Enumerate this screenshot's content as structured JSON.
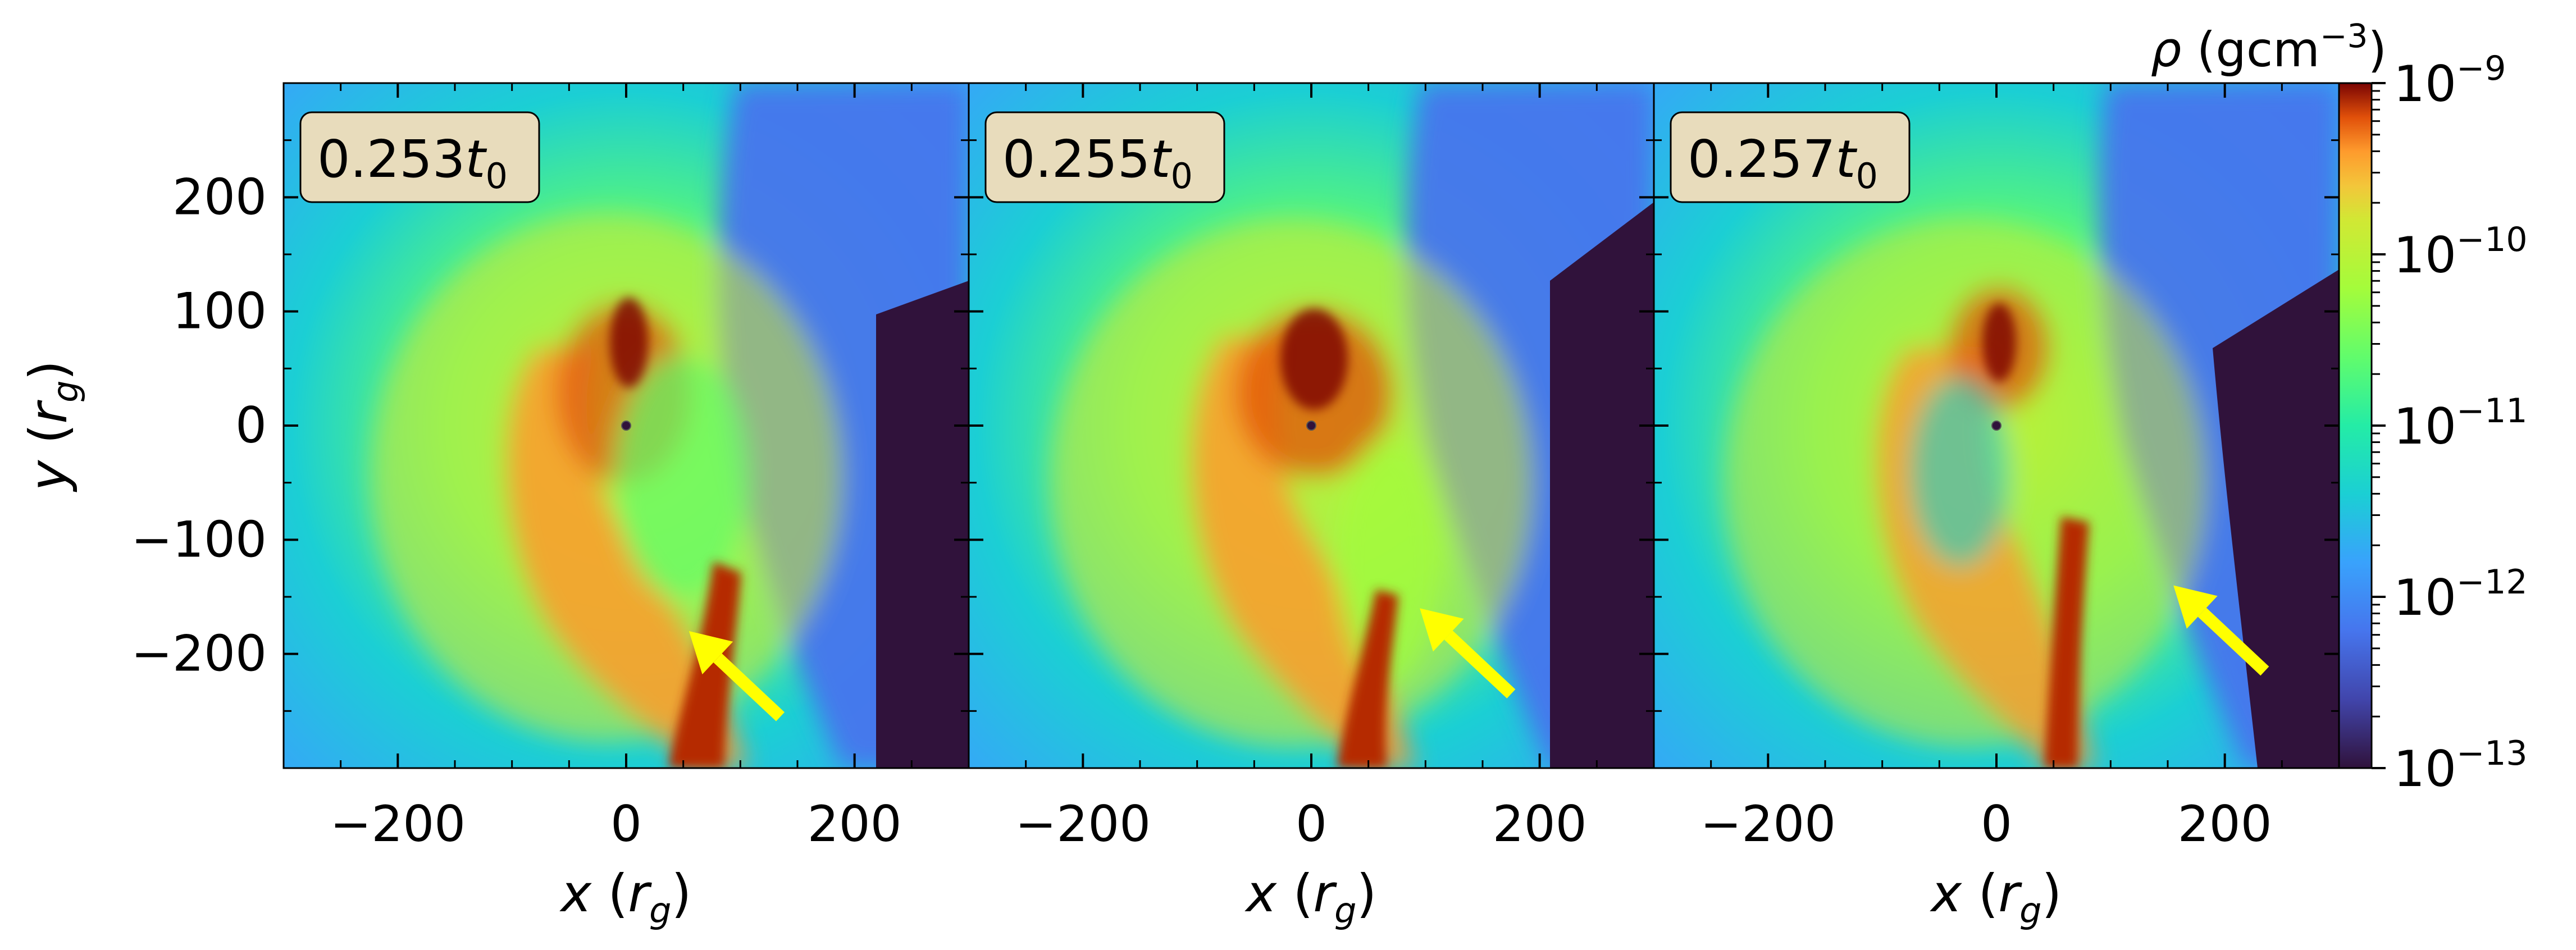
{
  "chart_data": {
    "type": "heatmap",
    "description_free": true,
    "colormap": "turbo",
    "colorbar": {
      "label_symbol": "ρ",
      "label_unit": "gcm",
      "label_exponent": "−3",
      "scale": "log",
      "range": [
        1e-13,
        1e-09
      ],
      "tick_values": [
        1e-13,
        1e-12,
        1e-11,
        1e-10,
        1e-09
      ],
      "tick_mantissa": "10",
      "tick_exponents": [
        "−13",
        "−12",
        "−11",
        "−10",
        "−9"
      ]
    },
    "xlim": [
      -300,
      300
    ],
    "ylim": [
      -300,
      300
    ],
    "x_ticks": [
      -200,
      0,
      200
    ],
    "y_ticks": [
      -200,
      -100,
      0,
      100,
      200
    ],
    "x_tick_labels": [
      "−200",
      "0",
      "200"
    ],
    "y_tick_labels": [
      "−200",
      "−100",
      "0",
      "100",
      "200"
    ],
    "xlabel": {
      "var": "x",
      "unit": "r",
      "sub": "g"
    },
    "ylabel": {
      "var": "y",
      "unit": "r",
      "sub": "g"
    },
    "panels": [
      {
        "time_value": "0.253",
        "time_symbol": "t",
        "time_sub": "0",
        "arrow": {
          "tail": [
            135,
            -255
          ],
          "head": [
            55,
            -180
          ]
        }
      },
      {
        "time_value": "0.255",
        "time_symbol": "t",
        "time_sub": "0",
        "arrow": {
          "tail": [
            175,
            -235
          ],
          "head": [
            95,
            -160
          ]
        }
      },
      {
        "time_value": "0.257",
        "time_symbol": "t",
        "time_sub": "0",
        "arrow": {
          "tail": [
            235,
            -215
          ],
          "head": [
            155,
            -140
          ]
        }
      }
    ],
    "annotation_color": "#ffff00",
    "label_box_color": "#e8dcbc"
  }
}
